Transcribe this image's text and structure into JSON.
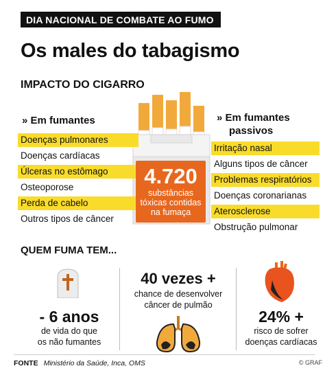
{
  "banner": "DIA NACIONAL DE COMBATE AO FUMO",
  "title": "Os males do tabagismo",
  "section": "IMPACTO DO CIGARRO",
  "smokers": {
    "heading": "» Em fumantes",
    "items": [
      {
        "label": "Doenças pulmonares",
        "highlight": true
      },
      {
        "label": "Doenças cardíacas",
        "highlight": false
      },
      {
        "label": "Úlceras no estômago",
        "highlight": true
      },
      {
        "label": "Osteoporose",
        "highlight": false
      },
      {
        "label": "Perda de cabelo",
        "highlight": true
      },
      {
        "label": "Outros tipos de câncer",
        "highlight": false
      }
    ]
  },
  "passive": {
    "heading_line1": "» Em fumantes",
    "heading_line2": "passivos",
    "items": [
      {
        "label": "Irritação nasal",
        "highlight": true
      },
      {
        "label": "Alguns tipos de câncer",
        "highlight": false
      },
      {
        "label": "Problemas respiratórios",
        "highlight": true
      },
      {
        "label": "Doenças coronarianas",
        "highlight": false
      },
      {
        "label": "Aterosclerose",
        "highlight": true
      },
      {
        "label": "Obstrução pulmonar",
        "highlight": false
      }
    ]
  },
  "count": {
    "number": "4.720",
    "line1": "substâncias",
    "line2": "tóxicas contidas",
    "line3": "na fumaça"
  },
  "quem": "QUEM FUMA TEM...",
  "stat_years": {
    "value": "- 6 anos",
    "line1": "de vida do que",
    "line2": "os não fumantes"
  },
  "stat_cancer": {
    "value": "40 vezes +",
    "line1": "chance de desenvolver",
    "line2": "câncer de pulmão"
  },
  "stat_heart": {
    "value": "24% +",
    "line1": "risco de sofrer",
    "line2": "doenças cardíacas"
  },
  "source": {
    "label": "FONTE",
    "text": "Ministério da Saúde, Inca, OMS"
  },
  "credit": "© GRAF",
  "colors": {
    "highlight": "#f9dc2b",
    "orange": "#e8671e",
    "cigarette_filter": "#f2a93b"
  },
  "icons": [
    "cigarette-pack-icon",
    "tombstone-icon",
    "lungs-icon",
    "heart-icon"
  ]
}
